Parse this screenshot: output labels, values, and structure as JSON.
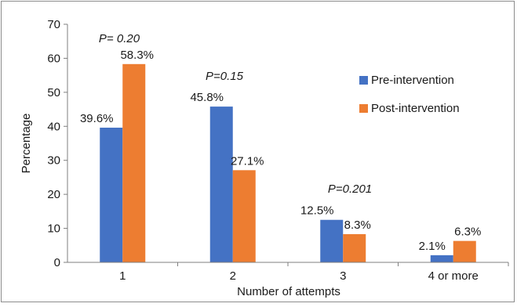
{
  "chart_data": {
    "type": "bar",
    "categories": [
      "1",
      "2",
      "3",
      "4 or more"
    ],
    "series": [
      {
        "name": "Pre-intervention",
        "values": [
          39.6,
          45.8,
          12.5,
          2.1
        ],
        "labels": [
          "39.6%",
          "45.8%",
          "12.5%",
          "2.1%"
        ],
        "color": "#4472C4"
      },
      {
        "name": "Post-intervention",
        "values": [
          58.3,
          27.1,
          8.3,
          6.3
        ],
        "labels": [
          "58.3%",
          "27.1%",
          "8.3%",
          "6.3%"
        ],
        "color": "#ED7D31"
      }
    ],
    "annotations": [
      "P= 0.20",
      "P=0.15",
      "P=0.201"
    ],
    "xlabel": "Number of attempts",
    "ylabel": "Percentage",
    "ylim": [
      0,
      70
    ],
    "yticks": [
      "0",
      "10",
      "20",
      "30",
      "40",
      "50",
      "60",
      "70"
    ],
    "grid": false,
    "legend_position": "right"
  }
}
